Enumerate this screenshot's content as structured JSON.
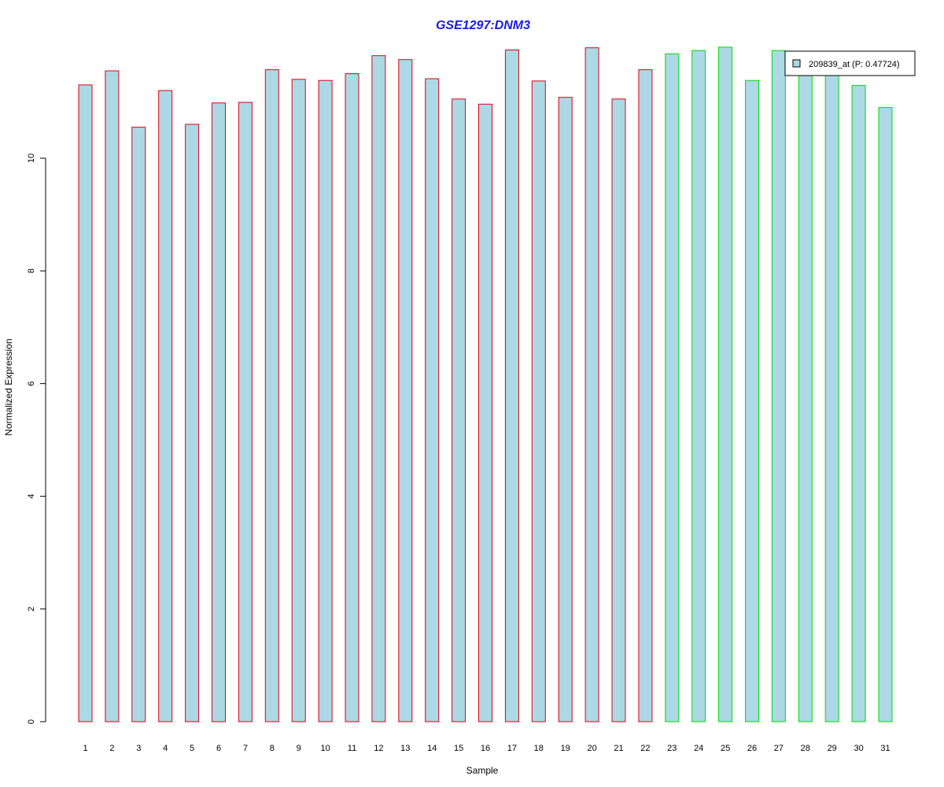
{
  "chart_data": {
    "type": "bar",
    "title": "GSE1297:DNM3",
    "xlabel": "Sample",
    "ylabel": "Normalized Expression",
    "ylim": [
      0,
      12
    ],
    "yticks": [
      0,
      2,
      4,
      6,
      8,
      10
    ],
    "categories": [
      "1",
      "2",
      "3",
      "4",
      "5",
      "6",
      "7",
      "8",
      "9",
      "10",
      "11",
      "12",
      "13",
      "14",
      "15",
      "16",
      "17",
      "18",
      "19",
      "20",
      "21",
      "22",
      "23",
      "24",
      "25",
      "26",
      "27",
      "28",
      "29",
      "30",
      "31"
    ],
    "series": [
      {
        "name": "209839_at (P: 0.47724)",
        "values": [
          11.3,
          11.55,
          10.55,
          11.2,
          10.6,
          10.98,
          10.99,
          11.57,
          11.4,
          11.38,
          11.5,
          11.82,
          11.75,
          11.41,
          11.05,
          10.96,
          11.92,
          11.37,
          11.08,
          11.96,
          11.05,
          11.57,
          11.85,
          11.91,
          11.97,
          11.38,
          11.91,
          11.5,
          11.5,
          11.29,
          10.9
        ]
      }
    ],
    "bar_fill": "#add8e6",
    "group_border_colors": [
      "#e0000f",
      "#e0000f",
      "#e0000f",
      "#e0000f",
      "#e0000f",
      "#e0000f",
      "#e0000f",
      "#e0000f",
      "#e0000f",
      "#e0000f",
      "#e0000f",
      "#e0000f",
      "#e0000f",
      "#e0000f",
      "#e0000f",
      "#e0000f",
      "#e0000f",
      "#e0000f",
      "#e0000f",
      "#e0000f",
      "#e0000f",
      "#e0000f",
      "#00dd00",
      "#00dd00",
      "#00dd00",
      "#00dd00",
      "#00dd00",
      "#00dd00",
      "#00dd00",
      "#00dd00",
      "#00dd00"
    ],
    "title_color": "#1a1ae6",
    "legend_position": "top-right",
    "grid": false
  }
}
